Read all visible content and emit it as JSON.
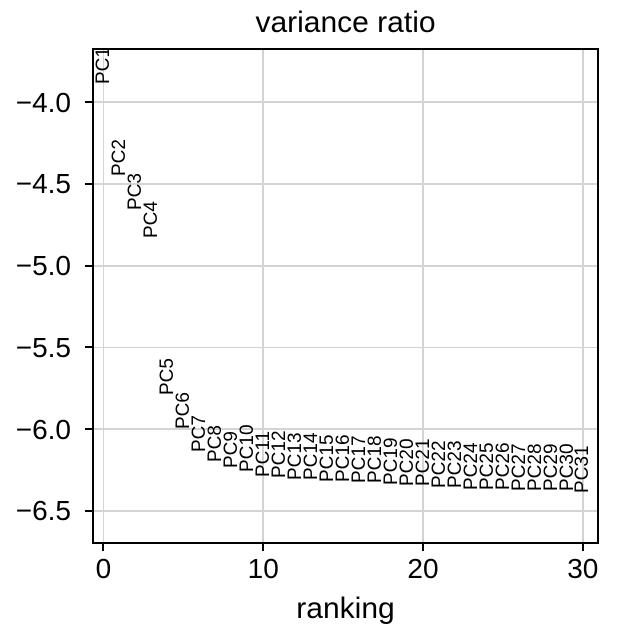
{
  "chart_data": {
    "type": "scatter",
    "title": "variance ratio",
    "xlabel": "ranking",
    "ylabel": "",
    "marker_style": "rotated-text-labels-no-dots",
    "grid": true,
    "legend": null,
    "x": [
      0,
      1,
      2,
      3,
      4,
      5,
      6,
      7,
      8,
      9,
      10,
      11,
      12,
      13,
      14,
      15,
      16,
      17,
      18,
      19,
      20,
      21,
      22,
      23,
      24,
      25,
      26,
      27,
      28,
      29,
      30
    ],
    "values": [
      -3.89,
      -4.45,
      -4.66,
      -4.83,
      -5.79,
      -6.0,
      -6.14,
      -6.2,
      -6.24,
      -6.26,
      -6.29,
      -6.3,
      -6.31,
      -6.31,
      -6.32,
      -6.32,
      -6.33,
      -6.33,
      -6.34,
      -6.35,
      -6.35,
      -6.36,
      -6.36,
      -6.37,
      -6.37,
      -6.37,
      -6.38,
      -6.38,
      -6.38,
      -6.38,
      -6.39
    ],
    "point_labels": [
      "PC1",
      "PC2",
      "PC3",
      "PC4",
      "PC5",
      "PC6",
      "PC7",
      "PC8",
      "PC9",
      "PC10",
      "PC11",
      "PC12",
      "PC13",
      "PC14",
      "PC15",
      "PC16",
      "PC17",
      "PC18",
      "PC19",
      "PC20",
      "PC21",
      "PC22",
      "PC23",
      "PC24",
      "PC25",
      "PC26",
      "PC27",
      "PC28",
      "PC29",
      "PC30",
      "PC31"
    ],
    "xlim": [
      -0.59,
      30.89
    ],
    "ylim": [
      -6.69,
      -3.68
    ],
    "x_tick_values": [
      0,
      10,
      20,
      30
    ],
    "x_tick_labels": [
      "0",
      "10",
      "20",
      "30"
    ],
    "y_tick_values": [
      -4.0,
      -4.5,
      -5.0,
      -5.5,
      -6.0,
      -6.5
    ],
    "y_tick_labels": [
      "−4.0",
      "−4.5",
      "−5.0",
      "−5.5",
      "−6.0",
      "−6.5"
    ],
    "colors": {
      "background": "#ffffff",
      "grid": "#d4d4d4",
      "spine": "#000000",
      "text": "#000000"
    }
  }
}
